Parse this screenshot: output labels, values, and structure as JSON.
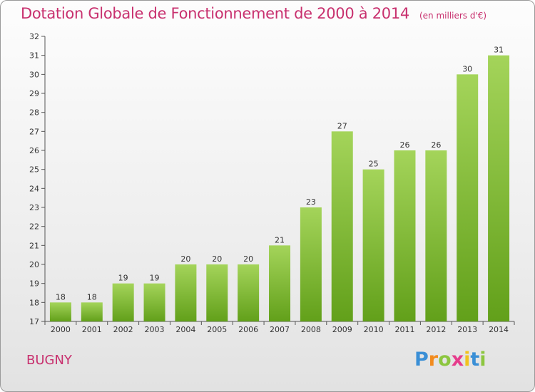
{
  "title": "Dotation Globale de Fonctionnement de 2000 à 2014",
  "units": "(en milliers d'€)",
  "commune": "BUGNY",
  "logo": {
    "letters": [
      "P",
      "r",
      "o",
      "x",
      "i",
      "t",
      "i"
    ],
    "colors": [
      "#3a8fd6",
      "#f28b1e",
      "#8cc63f",
      "#e63c8c",
      "#f2c21e",
      "#3a8fd6",
      "#8cc63f"
    ]
  },
  "colors": {
    "bar_top": "#a4d45a",
    "bar_bottom": "#62a01a",
    "title": "#c8306e"
  },
  "chart_data": {
    "type": "bar",
    "categories": [
      "2000",
      "2001",
      "2002",
      "2003",
      "2004",
      "2005",
      "2006",
      "2007",
      "2008",
      "2009",
      "2010",
      "2011",
      "2012",
      "2013",
      "2014"
    ],
    "values": [
      18,
      18,
      19,
      19,
      20,
      20,
      20,
      21,
      23,
      27,
      25,
      26,
      26,
      30,
      31
    ],
    "ylim": [
      17,
      32
    ],
    "yticks": [
      17,
      18,
      19,
      20,
      21,
      22,
      23,
      24,
      25,
      26,
      27,
      28,
      29,
      30,
      31,
      32
    ],
    "grid": false,
    "data_labels": true
  }
}
